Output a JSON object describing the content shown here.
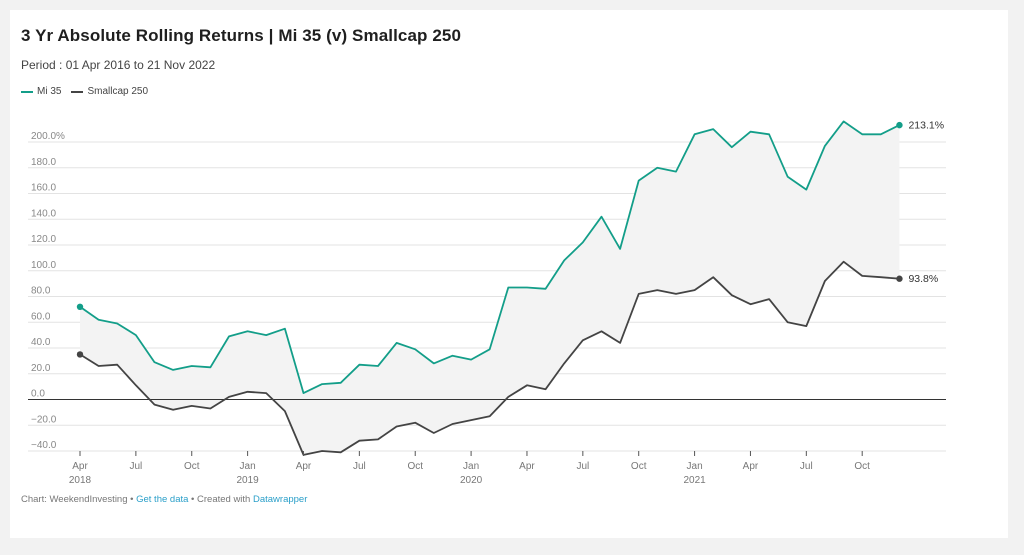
{
  "chart_data": {
    "type": "line",
    "title": "3 Yr Absolute Rolling Returns  |  Mi 35 (v) Smallcap 250",
    "subtitle": "Period : 01 Apr 2016 to 21 Nov 2022",
    "ylim": [
      -40,
      200
    ],
    "yticks": [
      -40,
      -20,
      0,
      20,
      40,
      60,
      80,
      100,
      120,
      140,
      160,
      180,
      200
    ],
    "ytick_labels": [
      "−40.0",
      "−20.0",
      "0.0",
      "20.0",
      "40.0",
      "60.0",
      "80.0",
      "100.0",
      "120.0",
      "140.0",
      "160.0",
      "180.0",
      "200.0%"
    ],
    "xlim": [
      0,
      46.5
    ],
    "xticks": [
      {
        "x": 0,
        "label": "Apr",
        "year": "2018"
      },
      {
        "x": 3,
        "label": "Jul",
        "year": ""
      },
      {
        "x": 6,
        "label": "Oct",
        "year": ""
      },
      {
        "x": 9,
        "label": "Jan",
        "year": "2019"
      },
      {
        "x": 12,
        "label": "Apr",
        "year": ""
      },
      {
        "x": 15,
        "label": "Jul",
        "year": ""
      },
      {
        "x": 18,
        "label": "Oct",
        "year": ""
      },
      {
        "x": 21,
        "label": "Jan",
        "year": "2020"
      },
      {
        "x": 24,
        "label": "Apr",
        "year": ""
      },
      {
        "x": 27,
        "label": "Jul",
        "year": ""
      },
      {
        "x": 30,
        "label": "Oct",
        "year": ""
      },
      {
        "x": 33,
        "label": "Jan",
        "year": "2021"
      },
      {
        "x": 36,
        "label": "Apr",
        "year": ""
      },
      {
        "x": 39,
        "label": "Jul",
        "year": ""
      },
      {
        "x": 42,
        "label": "Oct",
        "year": ""
      }
    ],
    "series": [
      {
        "name": "Mi 35",
        "color": "#139e89",
        "end_label": "213.1%",
        "x": [
          0,
          1,
          2,
          3,
          4,
          5,
          6,
          7,
          8,
          9,
          10,
          11,
          12,
          13,
          14,
          15,
          16,
          17,
          18,
          19,
          20,
          21,
          22,
          23,
          24,
          25,
          26,
          27,
          28,
          29,
          30,
          31,
          32,
          33,
          34,
          35,
          36,
          37,
          38,
          39,
          40,
          41,
          42,
          43,
          44
        ],
        "values": [
          72,
          62,
          59,
          50,
          29,
          23,
          26,
          25,
          49,
          53,
          50,
          55,
          5,
          12,
          13,
          27,
          26,
          44,
          39,
          28,
          34,
          31,
          39,
          87,
          87,
          86,
          108,
          122,
          142,
          117,
          170,
          180,
          177,
          206,
          210,
          196,
          208,
          206,
          173,
          163,
          197,
          216,
          206,
          206,
          213.1
        ]
      },
      {
        "name": "Smallcap 250",
        "color": "#444444",
        "end_label": "93.8%",
        "x": [
          0,
          1,
          2,
          3,
          4,
          5,
          6,
          7,
          8,
          9,
          10,
          11,
          12,
          13,
          14,
          15,
          16,
          17,
          18,
          19,
          20,
          21,
          22,
          23,
          24,
          25,
          26,
          27,
          28,
          29,
          30,
          31,
          32,
          33,
          34,
          35,
          36,
          37,
          38,
          39,
          40,
          41,
          42,
          43,
          44
        ],
        "values": [
          35,
          26,
          27,
          11,
          -4,
          -8,
          -5,
          -7,
          2,
          6,
          5,
          -9,
          -43,
          -40,
          -41,
          -32,
          -31,
          -21,
          -18,
          -26,
          -19,
          -16,
          -13,
          2,
          11,
          8,
          28,
          46,
          53,
          44,
          82,
          85,
          82,
          85,
          95,
          81,
          74,
          78,
          60,
          57,
          92,
          107,
          96,
          95,
          93.8
        ]
      }
    ]
  },
  "footer": {
    "prefix": "Chart: WeekendInvesting • ",
    "get_data": "Get the data",
    "middle": " • Created with ",
    "tool": "Datawrapper"
  }
}
